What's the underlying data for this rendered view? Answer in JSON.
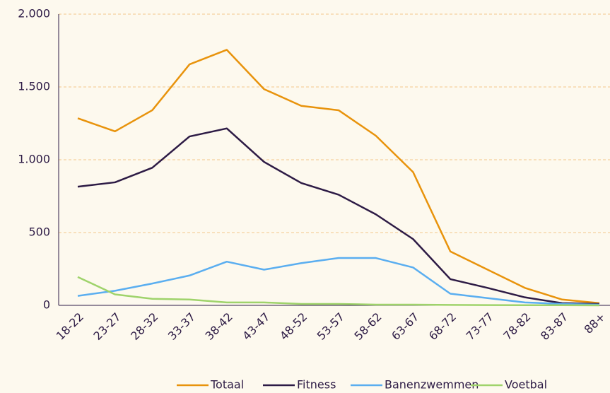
{
  "chart_data": {
    "type": "line",
    "categories": [
      "18-22",
      "23-27",
      "28-32",
      "33-37",
      "38-42",
      "43-47",
      "48-52",
      "53-57",
      "58-62",
      "63-67",
      "68-72",
      "73-77",
      "78-82",
      "83-87",
      "88+"
    ],
    "series": [
      {
        "name": "Totaal",
        "color": "#e8930c",
        "values": [
          1285,
          1195,
          1340,
          1655,
          1755,
          1485,
          1370,
          1340,
          1165,
          915,
          370,
          245,
          120,
          40,
          15
        ]
      },
      {
        "name": "Fitness",
        "color": "#2d1b45",
        "values": [
          815,
          845,
          945,
          1160,
          1215,
          985,
          840,
          760,
          625,
          455,
          180,
          120,
          55,
          15,
          10
        ]
      },
      {
        "name": "Banenzwemmen",
        "color": "#5aaef0",
        "values": [
          65,
          100,
          150,
          205,
          300,
          245,
          290,
          325,
          325,
          260,
          80,
          50,
          20,
          10,
          5
        ]
      },
      {
        "name": "Voetbal",
        "color": "#9fd36b",
        "values": [
          195,
          75,
          45,
          40,
          20,
          20,
          10,
          10,
          5,
          5,
          3,
          2,
          1,
          1,
          0
        ]
      }
    ],
    "ylim": [
      0,
      2000
    ],
    "yticks": [
      0,
      500,
      {
        "value": 1000,
        "label": "1.000"
      },
      {
        "value": 1500,
        "label": "1.500"
      },
      {
        "value": 2000,
        "label": "2.000"
      }
    ],
    "grid": true,
    "legend": "bottom"
  }
}
